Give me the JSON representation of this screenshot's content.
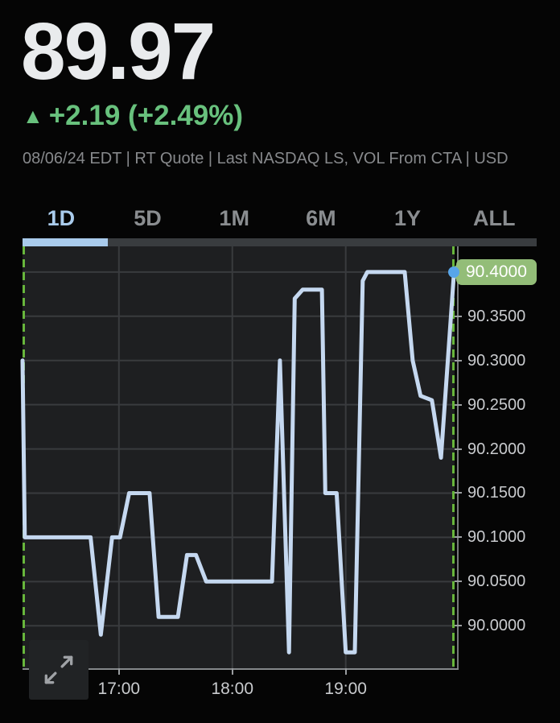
{
  "header": {
    "price": "89.97",
    "change_arrow": "▲",
    "change_text": "+2.19 (+2.49%)",
    "quote_meta": "08/06/24 EDT | RT Quote | Last NASDAQ LS, VOL From CTA | USD"
  },
  "tabs": [
    {
      "label": "1D",
      "selected": true
    },
    {
      "label": "5D",
      "selected": false
    },
    {
      "label": "1M",
      "selected": false
    },
    {
      "label": "6M",
      "selected": false
    },
    {
      "label": "1Y",
      "selected": false
    },
    {
      "label": "ALL",
      "selected": false
    }
  ],
  "chart_data": {
    "type": "line",
    "title": "1D intraday price chart",
    "x_range": [
      16.15,
      19.96
    ],
    "y_range": [
      89.952,
      90.429
    ],
    "grid": true,
    "legend": false,
    "x_ticks": [
      {
        "value": 17,
        "label": "17:00"
      },
      {
        "value": 18,
        "label": "18:00"
      },
      {
        "value": 19,
        "label": "19:00"
      }
    ],
    "y_ticks": [
      {
        "value": 90.4,
        "label": "90.4000"
      },
      {
        "value": 90.35,
        "label": "90.3500"
      },
      {
        "value": 90.3,
        "label": "90.3000"
      },
      {
        "value": 90.25,
        "label": "90.2500"
      },
      {
        "value": 90.2,
        "label": "90.2000"
      },
      {
        "value": 90.15,
        "label": "90.1500"
      },
      {
        "value": 90.1,
        "label": "90.1000"
      },
      {
        "value": 90.05,
        "label": "90.0500"
      },
      {
        "value": 90.0,
        "label": "90.0000"
      }
    ],
    "last_price_badge": "90.4000",
    "series": [
      {
        "name": "price",
        "points": [
          [
            16.15,
            90.3
          ],
          [
            16.17,
            90.1
          ],
          [
            16.75,
            90.1
          ],
          [
            16.84,
            89.99
          ],
          [
            16.94,
            90.1
          ],
          [
            17.01,
            90.1
          ],
          [
            17.09,
            90.15
          ],
          [
            17.27,
            90.15
          ],
          [
            17.35,
            90.01
          ],
          [
            17.52,
            90.01
          ],
          [
            17.6,
            90.08
          ],
          [
            17.68,
            90.08
          ],
          [
            17.77,
            90.05
          ],
          [
            18.35,
            90.05
          ],
          [
            18.42,
            90.3
          ],
          [
            18.5,
            89.97
          ],
          [
            18.55,
            90.37
          ],
          [
            18.62,
            90.38
          ],
          [
            18.79,
            90.38
          ],
          [
            18.82,
            90.15
          ],
          [
            18.92,
            90.15
          ],
          [
            19.0,
            89.97
          ],
          [
            19.08,
            89.97
          ],
          [
            19.15,
            90.39
          ],
          [
            19.19,
            90.4
          ],
          [
            19.52,
            90.4
          ],
          [
            19.59,
            90.3
          ],
          [
            19.66,
            90.26
          ],
          [
            19.76,
            90.255
          ],
          [
            19.84,
            90.19
          ],
          [
            19.955,
            90.4
          ]
        ]
      }
    ]
  },
  "colors": {
    "background": "#050505",
    "price_text": "#e9ebed",
    "change_green": "#68c17d",
    "meta_gray": "#87898c",
    "tab_inactive": "#8a8d90",
    "tab_active": "#a9cbec",
    "plot_bg": "#1e1f21",
    "gridline": "#393b3e",
    "line": "#c5d8f0",
    "dashed_edge": "#68b63c",
    "marker_dot": "#57a5e9",
    "badge_bg": "#93bd78",
    "badge_text": "#ffffff",
    "axis_label": "#c9cbce"
  }
}
